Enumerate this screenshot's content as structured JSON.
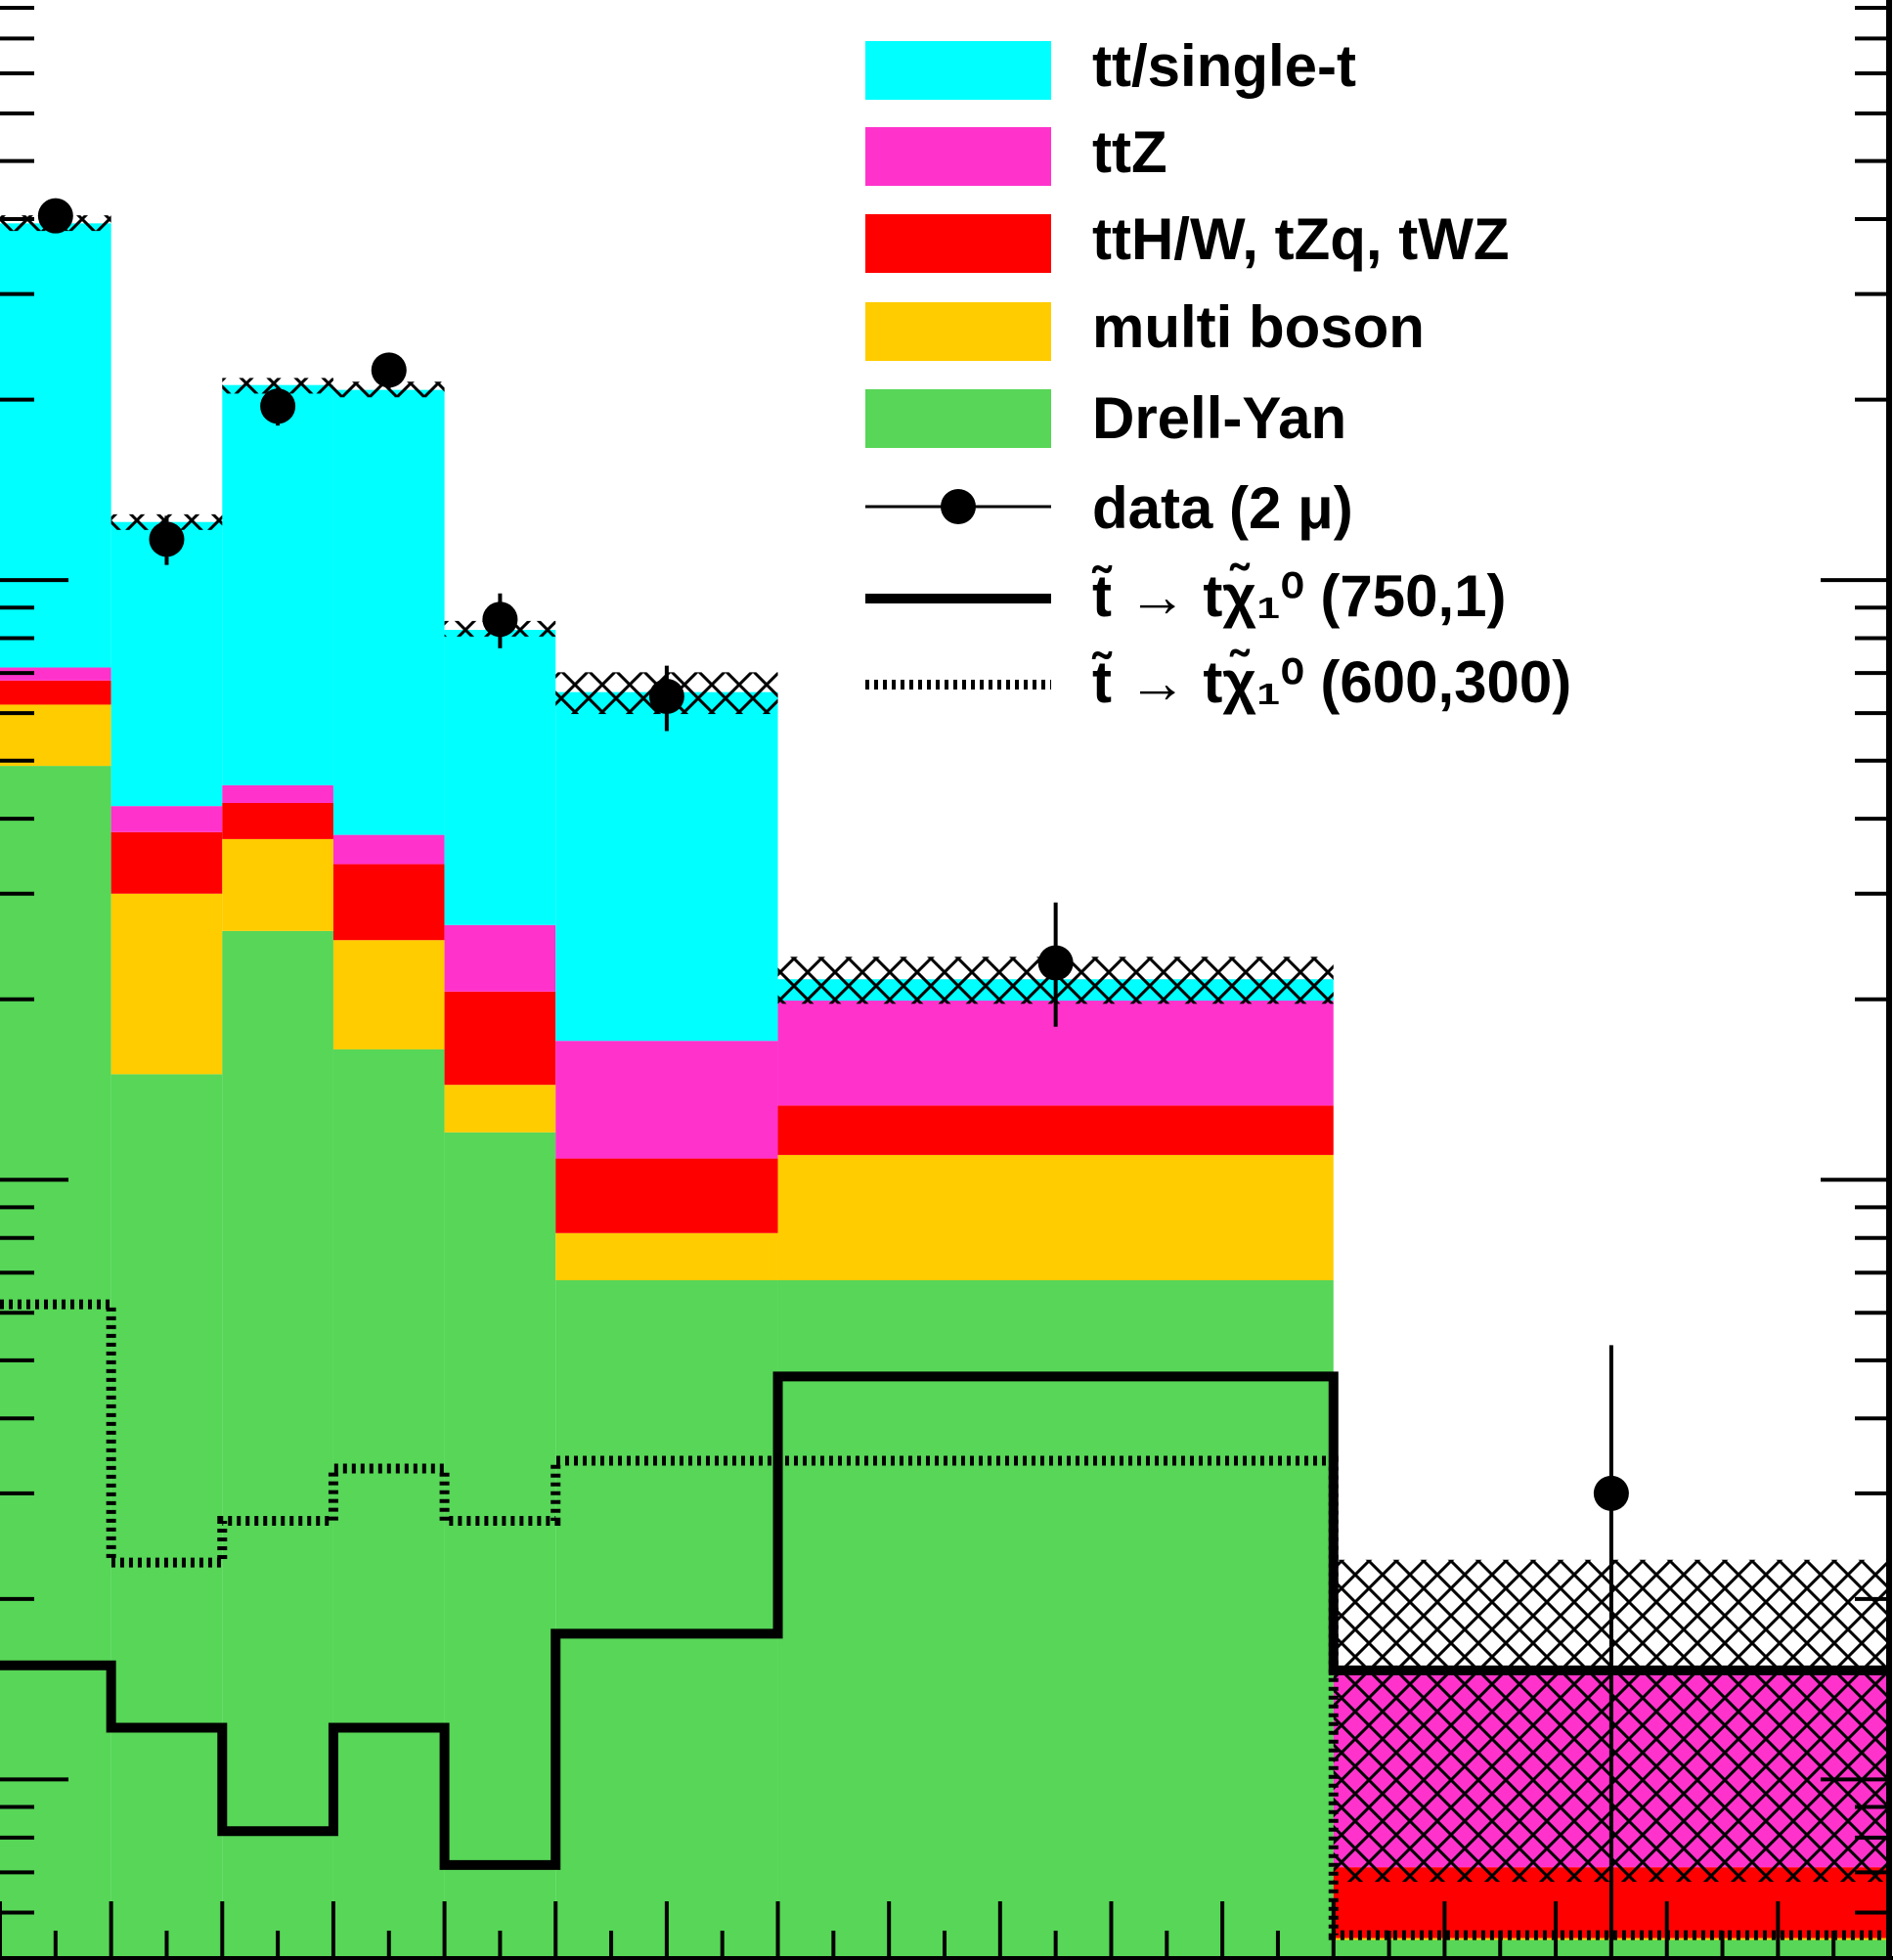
{
  "chart_data": {
    "type": "bar",
    "stacked": true,
    "log_scale_y": true,
    "ylim": [
      0.5,
      1000
    ],
    "grid": false,
    "legend_placement": "top-right",
    "bins": [
      [
        0,
        1
      ],
      [
        1,
        2
      ],
      [
        2,
        3
      ],
      [
        3,
        4
      ],
      [
        4,
        5
      ],
      [
        5,
        7
      ],
      [
        7,
        12
      ],
      [
        12,
        17
      ]
    ],
    "stack": [
      {
        "name": "Drell-Yan",
        "color": "#57d657",
        "values": [
          49,
          15,
          26,
          16.5,
          12,
          6.8,
          6.8,
          0.54
        ]
      },
      {
        "name": "multi boson",
        "color": "#ffcc00",
        "values": [
          13,
          15,
          11,
          8.6,
          2.4,
          1.35,
          4.2,
          0.004
        ]
      },
      {
        "name": "ttH/W, tZq, tWZ",
        "color": "#ff0000",
        "values": [
          6,
          8,
          5.5,
          8.5,
          6.2,
          2.7,
          2.3,
          0.17
        ]
      },
      {
        "name": "ttZ",
        "color": "#ff33cc",
        "values": [
          3.5,
          4,
          3,
          4,
          6,
          6.2,
          6.6,
          0.78
        ]
      },
      {
        "name": "tt/single-t",
        "color": "#00ffff",
        "values": [
          322,
          83,
          166,
          170,
          56,
          48,
          1.7,
          0.004
        ]
      }
    ],
    "total": [
      394,
      125,
      211,
      208,
      83,
      65,
      21.6,
      1.5
    ],
    "data_series": {
      "name": "data (2 μ)",
      "values": [
        405,
        117,
        195,
        224,
        86,
        64,
        23,
        3
      ],
      "err_up": [
        20,
        11,
        14,
        15,
        9,
        8,
        6,
        2.3
      ],
      "err_down": [
        20,
        11,
        14,
        15,
        9,
        8,
        5,
        2.9
      ]
    },
    "signal_series": [
      {
        "name": "(750,1)",
        "style": "solid",
        "values": [
          1.55,
          1.22,
          0.82,
          1.22,
          0.72,
          1.75,
          4.7,
          1.52
        ]
      },
      {
        "name": "(600,300)",
        "style": "dotted",
        "values": [
          6.2,
          2.3,
          2.7,
          3.3,
          2.7,
          3.4,
          3.4,
          0.55
        ]
      }
    ]
  },
  "legend": {
    "items": [
      {
        "label": "tt/single-t",
        "kind": "box",
        "color": "#00ffff"
      },
      {
        "label": "ttZ",
        "kind": "box",
        "color": "#ff33cc"
      },
      {
        "label": "ttH/W, tZq, tWZ",
        "kind": "box",
        "color": "#ff0000"
      },
      {
        "label": "multi boson",
        "kind": "box",
        "color": "#ffcc00"
      },
      {
        "label": "Drell-Yan",
        "kind": "box",
        "color": "#57d657"
      },
      {
        "label": "data (2 μ)",
        "kind": "marker"
      },
      {
        "label": "t̃ → tχ̃₁⁰ (750,1)",
        "kind": "solid"
      },
      {
        "label": "t̃ → tχ̃₁⁰ (600,300)",
        "kind": "dotted"
      }
    ]
  }
}
